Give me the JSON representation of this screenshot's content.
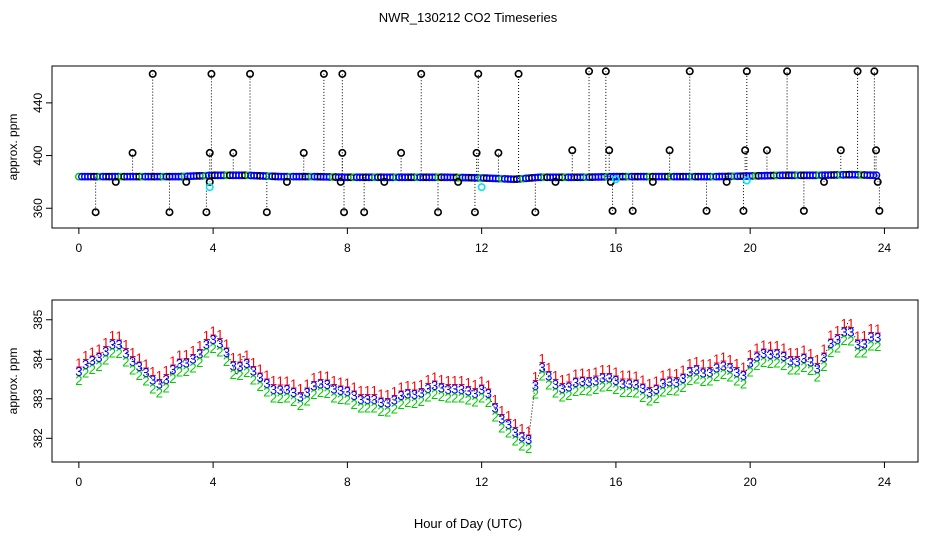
{
  "title": "NWR_130212  CO2 Timeseries",
  "xlabel": "Hour of Day (UTC)",
  "colors": {
    "black": "#000000",
    "blue": "#0000ff",
    "cyan": "#00e5ee",
    "red": "#ff0000",
    "green": "#00cc00"
  },
  "chart_data": [
    {
      "type": "scatter",
      "name": "top-panel",
      "ylabel": "approx. ppm",
      "xlim": [
        -0.8,
        25
      ],
      "ylim": [
        345,
        468
      ],
      "xticks": [
        "0",
        "4",
        "8",
        "12",
        "16",
        "20",
        "24"
      ],
      "xtick_values": [
        0,
        4,
        8,
        12,
        16,
        20,
        24
      ],
      "yticks": [
        "360",
        "400",
        "440"
      ],
      "ytick_values": [
        360,
        400,
        440
      ],
      "baseline": [
        [
          0,
          384
        ],
        [
          1,
          384
        ],
        [
          2,
          384
        ],
        [
          3,
          384
        ],
        [
          4,
          385
        ],
        [
          5,
          385
        ],
        [
          6,
          384
        ],
        [
          7,
          384
        ],
        [
          8,
          383.5
        ],
        [
          9,
          383.5
        ],
        [
          10,
          383.5
        ],
        [
          11,
          383.5
        ],
        [
          12,
          383
        ],
        [
          13,
          382
        ],
        [
          13.7,
          383.5
        ],
        [
          15,
          383.5
        ],
        [
          16,
          384
        ],
        [
          17,
          384
        ],
        [
          18,
          384
        ],
        [
          19,
          384
        ],
        [
          20,
          384.5
        ],
        [
          21,
          385
        ],
        [
          22,
          385
        ],
        [
          23,
          385.5
        ],
        [
          23.7,
          385
        ]
      ],
      "spikes": [
        [
          0.5,
          357
        ],
        [
          1.1,
          380
        ],
        [
          1.6,
          402
        ],
        [
          2.2,
          462
        ],
        [
          2.7,
          357
        ],
        [
          3.2,
          380
        ],
        [
          3.8,
          357
        ],
        [
          3.9,
          380
        ],
        [
          3.9,
          402
        ],
        [
          3.95,
          462
        ],
        [
          4.6,
          402
        ],
        [
          5.1,
          462
        ],
        [
          5.6,
          357
        ],
        [
          6.2,
          380
        ],
        [
          6.7,
          402
        ],
        [
          7.3,
          462
        ],
        [
          7.8,
          380
        ],
        [
          7.85,
          402
        ],
        [
          7.85,
          462
        ],
        [
          7.9,
          357
        ],
        [
          8.5,
          357
        ],
        [
          9.1,
          380
        ],
        [
          9.6,
          402
        ],
        [
          10.2,
          462
        ],
        [
          10.7,
          357
        ],
        [
          11.3,
          380
        ],
        [
          11.8,
          357
        ],
        [
          11.85,
          402
        ],
        [
          11.9,
          462
        ],
        [
          12.5,
          402
        ],
        [
          13.1,
          462
        ],
        [
          13.6,
          357
        ],
        [
          14.2,
          380
        ],
        [
          14.7,
          404
        ],
        [
          15.2,
          464
        ],
        [
          15.7,
          464
        ],
        [
          15.8,
          404
        ],
        [
          15.85,
          380
        ],
        [
          15.9,
          358
        ],
        [
          16.5,
          358
        ],
        [
          17.1,
          380
        ],
        [
          17.6,
          404
        ],
        [
          18.2,
          464
        ],
        [
          18.7,
          358
        ],
        [
          19.3,
          380
        ],
        [
          19.8,
          358
        ],
        [
          19.85,
          404
        ],
        [
          19.9,
          464
        ],
        [
          20.5,
          404
        ],
        [
          21.1,
          464
        ],
        [
          21.6,
          358
        ],
        [
          22.2,
          380
        ],
        [
          22.7,
          404
        ],
        [
          23.2,
          464
        ],
        [
          23.7,
          464
        ],
        [
          23.75,
          404
        ],
        [
          23.8,
          380
        ],
        [
          23.85,
          358
        ]
      ],
      "cyan_points": [
        [
          3.9,
          376
        ],
        [
          12.0,
          376
        ],
        [
          16.0,
          382
        ],
        [
          19.9,
          381
        ]
      ]
    },
    {
      "type": "scatter",
      "name": "bottom-panel",
      "ylabel": "approx. ppm",
      "xlim": [
        -0.8,
        25
      ],
      "ylim": [
        381.4,
        385.5
      ],
      "xticks": [
        "0",
        "4",
        "8",
        "12",
        "16",
        "20",
        "24"
      ],
      "xtick_values": [
        0,
        4,
        8,
        12,
        16,
        20,
        24
      ],
      "yticks": [
        "382",
        "383",
        "384",
        "385"
      ],
      "ytick_values": [
        382,
        383,
        384,
        385
      ],
      "series": [
        {
          "name": "1",
          "color": "red",
          "offset": 0.22
        },
        {
          "name": "3",
          "color": "blue",
          "offset": 0.0
        },
        {
          "name": "2",
          "color": "green",
          "offset": -0.22
        }
      ],
      "profile": [
        [
          0.0,
          383.7
        ],
        [
          0.3,
          383.9
        ],
        [
          0.6,
          384.1
        ],
        [
          0.9,
          384.3
        ],
        [
          1.1,
          384.4
        ],
        [
          1.3,
          384.3
        ],
        [
          1.6,
          384.0
        ],
        [
          1.9,
          383.7
        ],
        [
          2.2,
          383.5
        ],
        [
          2.5,
          383.4
        ],
        [
          2.7,
          383.6
        ],
        [
          3.0,
          383.9
        ],
        [
          3.3,
          384.0
        ],
        [
          3.6,
          384.1
        ],
        [
          3.9,
          384.5
        ],
        [
          4.1,
          384.6
        ],
        [
          4.3,
          384.3
        ],
        [
          4.5,
          384.0
        ],
        [
          4.7,
          383.6
        ],
        [
          4.9,
          384.1
        ],
        [
          5.1,
          383.8
        ],
        [
          5.4,
          383.5
        ],
        [
          5.8,
          383.3
        ],
        [
          6.2,
          383.2
        ],
        [
          6.6,
          383.1
        ],
        [
          7.0,
          383.3
        ],
        [
          7.4,
          383.4
        ],
        [
          7.8,
          383.2
        ],
        [
          8.2,
          383.1
        ],
        [
          8.6,
          383.0
        ],
        [
          9.0,
          382.9
        ],
        [
          9.4,
          383.0
        ],
        [
          9.8,
          383.1
        ],
        [
          10.2,
          383.2
        ],
        [
          10.6,
          383.3
        ],
        [
          11.0,
          383.3
        ],
        [
          11.4,
          383.2
        ],
        [
          11.8,
          383.2
        ],
        [
          12.1,
          383.3
        ],
        [
          12.3,
          382.9
        ],
        [
          12.5,
          382.6
        ],
        [
          12.8,
          382.4
        ],
        [
          13.1,
          382.0
        ],
        [
          13.4,
          382.0
        ],
        [
          13.6,
          383.4
        ],
        [
          13.8,
          383.8
        ],
        [
          14.1,
          383.4
        ],
        [
          14.5,
          383.3
        ],
        [
          14.9,
          383.4
        ],
        [
          15.3,
          383.5
        ],
        [
          15.7,
          383.5
        ],
        [
          16.0,
          383.5
        ],
        [
          16.3,
          383.4
        ],
        [
          16.7,
          383.3
        ],
        [
          17.1,
          383.2
        ],
        [
          17.5,
          383.4
        ],
        [
          17.9,
          383.5
        ],
        [
          18.3,
          383.7
        ],
        [
          18.7,
          383.7
        ],
        [
          19.1,
          383.8
        ],
        [
          19.5,
          383.8
        ],
        [
          19.8,
          383.6
        ],
        [
          20.1,
          384.0
        ],
        [
          20.4,
          384.2
        ],
        [
          20.8,
          384.1
        ],
        [
          21.2,
          384.0
        ],
        [
          21.6,
          384.0
        ],
        [
          22.0,
          383.8
        ],
        [
          22.4,
          384.4
        ],
        [
          22.7,
          384.5
        ],
        [
          22.9,
          384.9
        ],
        [
          23.1,
          384.6
        ],
        [
          23.3,
          384.2
        ],
        [
          23.5,
          384.5
        ],
        [
          23.7,
          384.6
        ]
      ]
    }
  ]
}
